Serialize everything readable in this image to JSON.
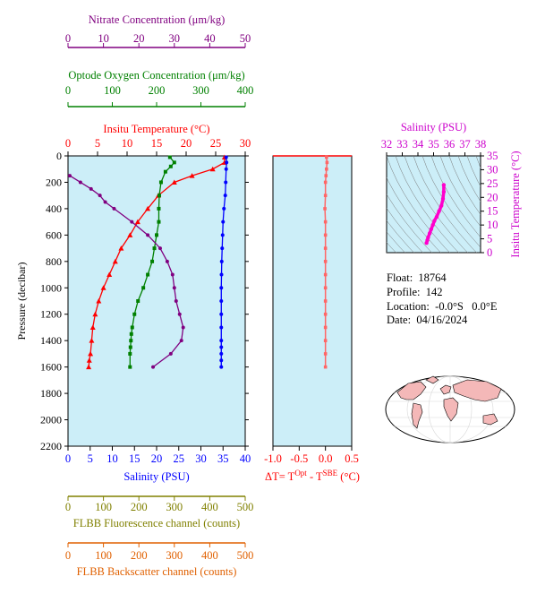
{
  "chart_data": [
    {
      "type": "line",
      "title": "",
      "y_axis": {
        "label": "Pressure (decibar)",
        "range": [
          0,
          2200
        ],
        "inverted": true,
        "ticks": [
          0,
          200,
          400,
          600,
          800,
          1000,
          1200,
          1400,
          1600,
          1800,
          2000,
          2200
        ]
      },
      "axes": {
        "temperature": {
          "label": "Insitu Temperature (°C)",
          "range": [
            0,
            30
          ],
          "ticks": [
            0,
            5,
            10,
            15,
            20,
            25,
            30
          ],
          "color": "#ff0000",
          "position": "top"
        },
        "oxygen": {
          "label": "Optode Oxygen Concentration (μm/kg)",
          "range": [
            0,
            400
          ],
          "ticks": [
            0,
            100,
            200,
            300,
            400
          ],
          "color": "#008000",
          "position": "top"
        },
        "nitrate": {
          "label": "Nitrate Concentration (μm/kg)",
          "range": [
            0,
            50
          ],
          "ticks": [
            0,
            10,
            20,
            30,
            40,
            50
          ],
          "color": "#800080",
          "position": "top"
        },
        "salinity": {
          "label": "Salinity (PSU)",
          "range": [
            0,
            40
          ],
          "ticks": [
            0,
            5,
            10,
            15,
            20,
            25,
            30,
            35,
            40
          ],
          "color": "#0000ff",
          "position": "bottom"
        },
        "fluorescence": {
          "label": "FLBB Fluorescence channel (counts)",
          "range": [
            0,
            500
          ],
          "ticks": [
            0,
            100,
            200,
            300,
            400,
            500
          ],
          "color": "#808000",
          "position": "bottom"
        },
        "backscatter": {
          "label": "FLBB Backscatter channel (counts)",
          "range": [
            0,
            500
          ],
          "ticks": [
            0,
            100,
            200,
            300,
            400,
            500
          ],
          "color": "#e06000",
          "position": "bottom"
        }
      },
      "series": [
        {
          "key": "temperature",
          "color": "#ff0000",
          "marker": "triangle",
          "x": [
            26.5,
            26.5,
            24.5,
            21.0,
            18.0,
            15.3,
            13.5,
            11.8,
            10.5,
            9.0,
            8.0,
            7.0,
            6.0,
            5.2,
            4.6,
            4.2,
            4.0,
            3.8,
            3.6,
            3.5
          ],
          "y": [
            10,
            50,
            100,
            150,
            200,
            300,
            400,
            500,
            600,
            700,
            800,
            900,
            1000,
            1100,
            1200,
            1300,
            1400,
            1500,
            1550,
            1600
          ]
        },
        {
          "key": "oxygen",
          "color": "#008000",
          "marker": "square",
          "x": [
            230,
            240,
            232,
            220,
            210,
            206,
            205,
            205,
            200,
            195,
            190,
            180,
            170,
            158,
            150,
            145,
            143,
            142,
            141,
            140,
            140
          ],
          "y": [
            10,
            50,
            80,
            120,
            200,
            300,
            400,
            500,
            600,
            700,
            800,
            900,
            1000,
            1100,
            1200,
            1300,
            1350,
            1400,
            1450,
            1500,
            1600
          ]
        },
        {
          "key": "nitrate",
          "color": "#800080",
          "marker": "dot",
          "x": [
            0.5,
            3.5,
            6.5,
            9,
            10.5,
            13,
            18,
            22.5,
            26,
            28,
            29.5,
            30,
            30.5,
            31.5,
            32.5,
            32,
            29,
            24
          ],
          "y": [
            150,
            200,
            250,
            300,
            350,
            400,
            500,
            600,
            700,
            800,
            900,
            1000,
            1100,
            1200,
            1300,
            1400,
            1500,
            1600
          ]
        },
        {
          "key": "salinity",
          "color": "#0000ff",
          "marker": "dot",
          "x": [
            35.7,
            35.8,
            35.7,
            35.6,
            35.5,
            35.2,
            35.0,
            34.9,
            34.8,
            34.7,
            34.65,
            34.6,
            34.6,
            34.6,
            34.6,
            34.6,
            34.6,
            34.6,
            34.6,
            34.6
          ],
          "y": [
            10,
            50,
            100,
            200,
            300,
            400,
            500,
            600,
            700,
            800,
            900,
            1000,
            1100,
            1200,
            1300,
            1400,
            1450,
            1500,
            1550,
            1600
          ]
        }
      ]
    },
    {
      "type": "scatter",
      "xlabel": "ΔT= T^Opt - T^SBE (°C)",
      "x_range": [
        -1.0,
        0.5
      ],
      "x_ticks": [
        "-1.0",
        "-0.5",
        "0.0",
        "0.5"
      ],
      "y_range": [
        0,
        2200
      ],
      "color": "#ff6666",
      "y": [
        10,
        50,
        100,
        150,
        200,
        300,
        400,
        500,
        600,
        700,
        800,
        900,
        1000,
        1100,
        1200,
        1300,
        1400,
        1500,
        1600
      ],
      "x": [
        0.02,
        0.03,
        0.02,
        0.01,
        0.0,
        0.0,
        -0.01,
        0.0,
        0.0,
        0.0,
        0.0,
        0.0,
        0.0,
        0.0,
        0.0,
        0.0,
        0.0,
        0.0,
        0.0
      ]
    },
    {
      "type": "scatter",
      "title": "",
      "xlabel": "Salinity (PSU)",
      "ylabel": "Insitu Temperature (°C)",
      "x_range": [
        32,
        38
      ],
      "y_range": [
        0,
        35
      ],
      "x_ticks": [
        32,
        33,
        34,
        35,
        36,
        37,
        38
      ],
      "y_ticks": [
        0,
        5,
        10,
        15,
        20,
        25,
        30,
        35
      ],
      "color": "#ff00cc",
      "x": [
        35.65,
        35.65,
        35.6,
        35.5,
        35.35,
        35.2,
        35.05,
        34.95,
        34.85,
        34.75,
        34.65,
        34.6,
        34.55
      ],
      "y": [
        24.5,
        22,
        19.5,
        17,
        15,
        13,
        11.5,
        10,
        8.5,
        7,
        5.5,
        4.5,
        3.5
      ]
    }
  ],
  "info": {
    "float": "Float:  18764",
    "profile": "Profile:  142",
    "location": "Location:  -0.0°S   0.0°E",
    "date": "Date:  04/16/2024"
  },
  "colors": {
    "plot_bg": "#cceef8",
    "map_ocean": "#ffffff",
    "map_land": "#f4b8b8"
  }
}
